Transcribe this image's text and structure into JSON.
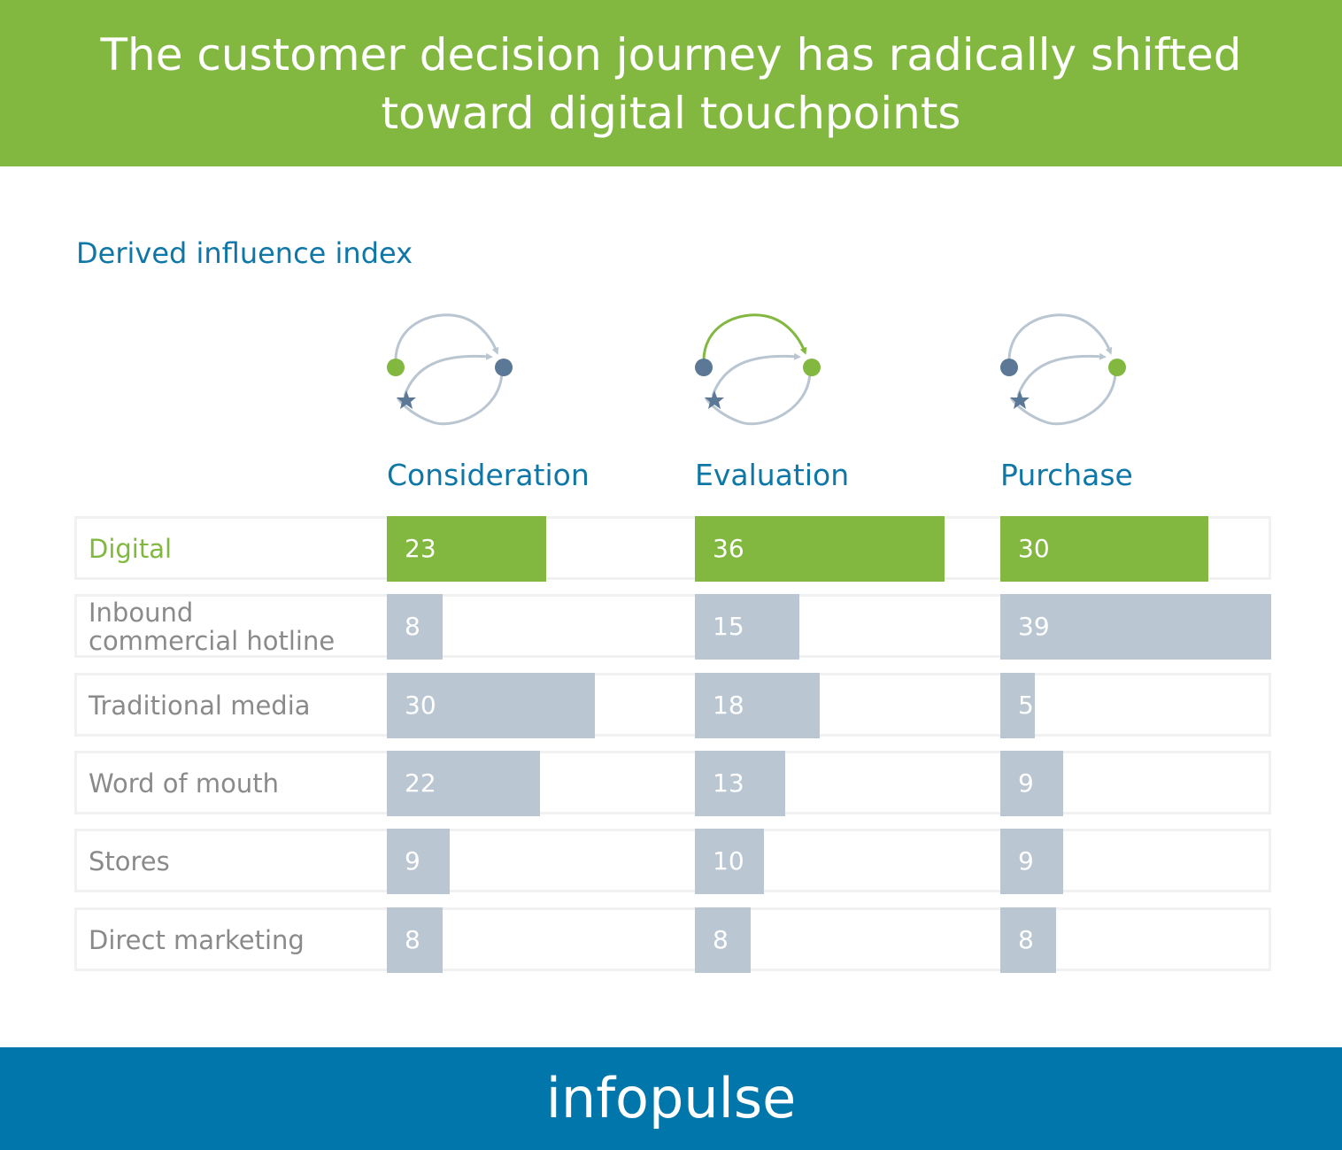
{
  "header": {
    "title_line1": "The customer decision journey has radically shifted",
    "title_line2": "toward digital touchpoints"
  },
  "subtitle": "Derived influence index",
  "colors": {
    "brand_green": "#82b840",
    "brand_blue": "#0076ab",
    "heading_blue": "#0f77a8",
    "bar_gray": "#bac7d3",
    "row_border": "#f1f1f1",
    "icon_slate": "#5b7896",
    "arc_gray": "#b9c6d2"
  },
  "footer": {
    "logo_text": "infopulse"
  },
  "chart_data": {
    "type": "bar",
    "orientation": "horizontal",
    "title": "Derived influence index",
    "categories": [
      "Digital",
      "Inbound commercial hotline",
      "Traditional media",
      "Word of mouth",
      "Stores",
      "Direct marketing"
    ],
    "category_lines": [
      [
        "Digital"
      ],
      [
        "Inbound",
        "commercial hotline"
      ],
      [
        "Traditional media"
      ],
      [
        "Word of mouth"
      ],
      [
        "Stores"
      ],
      [
        "Direct marketing"
      ]
    ],
    "highlight_category": "Digital",
    "xlim": [
      0,
      39
    ],
    "series": [
      {
        "name": "Consideration",
        "values": [
          23,
          8,
          30,
          22,
          9,
          8
        ],
        "active_node": "left"
      },
      {
        "name": "Evaluation",
        "values": [
          36,
          15,
          18,
          13,
          10,
          8
        ],
        "active_node": "right",
        "highlight_top_arc": true
      },
      {
        "name": "Purchase",
        "values": [
          30,
          39,
          5,
          9,
          9,
          8
        ],
        "active_node": "right"
      }
    ]
  }
}
